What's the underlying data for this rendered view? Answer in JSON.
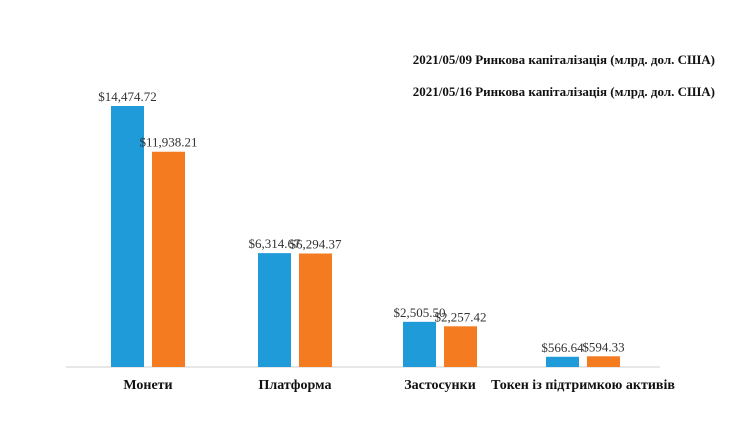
{
  "chart_data": {
    "type": "bar",
    "categories": [
      "Монети",
      "Платформа",
      "Застосунки",
      "Токен із підтримкою активів"
    ],
    "series": [
      {
        "name": "2021/05/09 Ринкова капіталізація (млрд. дол. США)",
        "values": [
          14474.72,
          6314.67,
          2505.5,
          566.64
        ],
        "labels": [
          "$14,474.72",
          "$6,314.67",
          "$2,505.50",
          "$566.64"
        ],
        "color": "#1f9bd9"
      },
      {
        "name": "2021/05/16 Ринкова капіталізація (млрд. дол. США)",
        "values": [
          11938.21,
          6294.37,
          2257.42,
          594.33
        ],
        "labels": [
          "$11,938.21",
          "$6,294.37",
          "$2,257.42",
          "$594.33"
        ],
        "color": "#f47b20"
      }
    ],
    "ylim": [
      0,
      14474.72
    ],
    "grid": false,
    "legend": "top-right"
  }
}
